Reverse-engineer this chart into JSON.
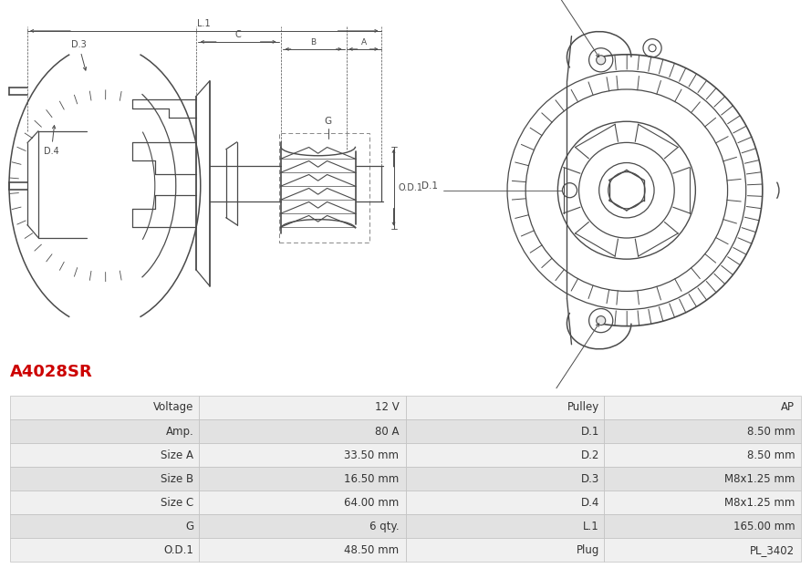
{
  "title": "A4028SR",
  "title_color": "#cc0000",
  "bg_color": "#ffffff",
  "table_rows": [
    [
      "Voltage",
      "12 V",
      "Pulley",
      "AP"
    ],
    [
      "Amp.",
      "80 A",
      "D.1",
      "8.50 mm"
    ],
    [
      "Size A",
      "33.50 mm",
      "D.2",
      "8.50 mm"
    ],
    [
      "Size B",
      "16.50 mm",
      "D.3",
      "M8x1.25 mm"
    ],
    [
      "Size C",
      "64.00 mm",
      "D.4",
      "M8x1.25 mm"
    ],
    [
      "G",
      "6 qty.",
      "L.1",
      "165.00 mm"
    ],
    [
      "O.D.1",
      "48.50 mm",
      "Plug",
      "PL_3402"
    ]
  ],
  "line_color": "#4a4a4a",
  "dim_color": "#4a4a4a",
  "text_color": "#333333",
  "title_fontsize": 13,
  "table_fontsize": 8.5,
  "odd_bg": "#f0f0f0",
  "even_bg": "#e2e2e2",
  "border_color": "#c0c0c0"
}
